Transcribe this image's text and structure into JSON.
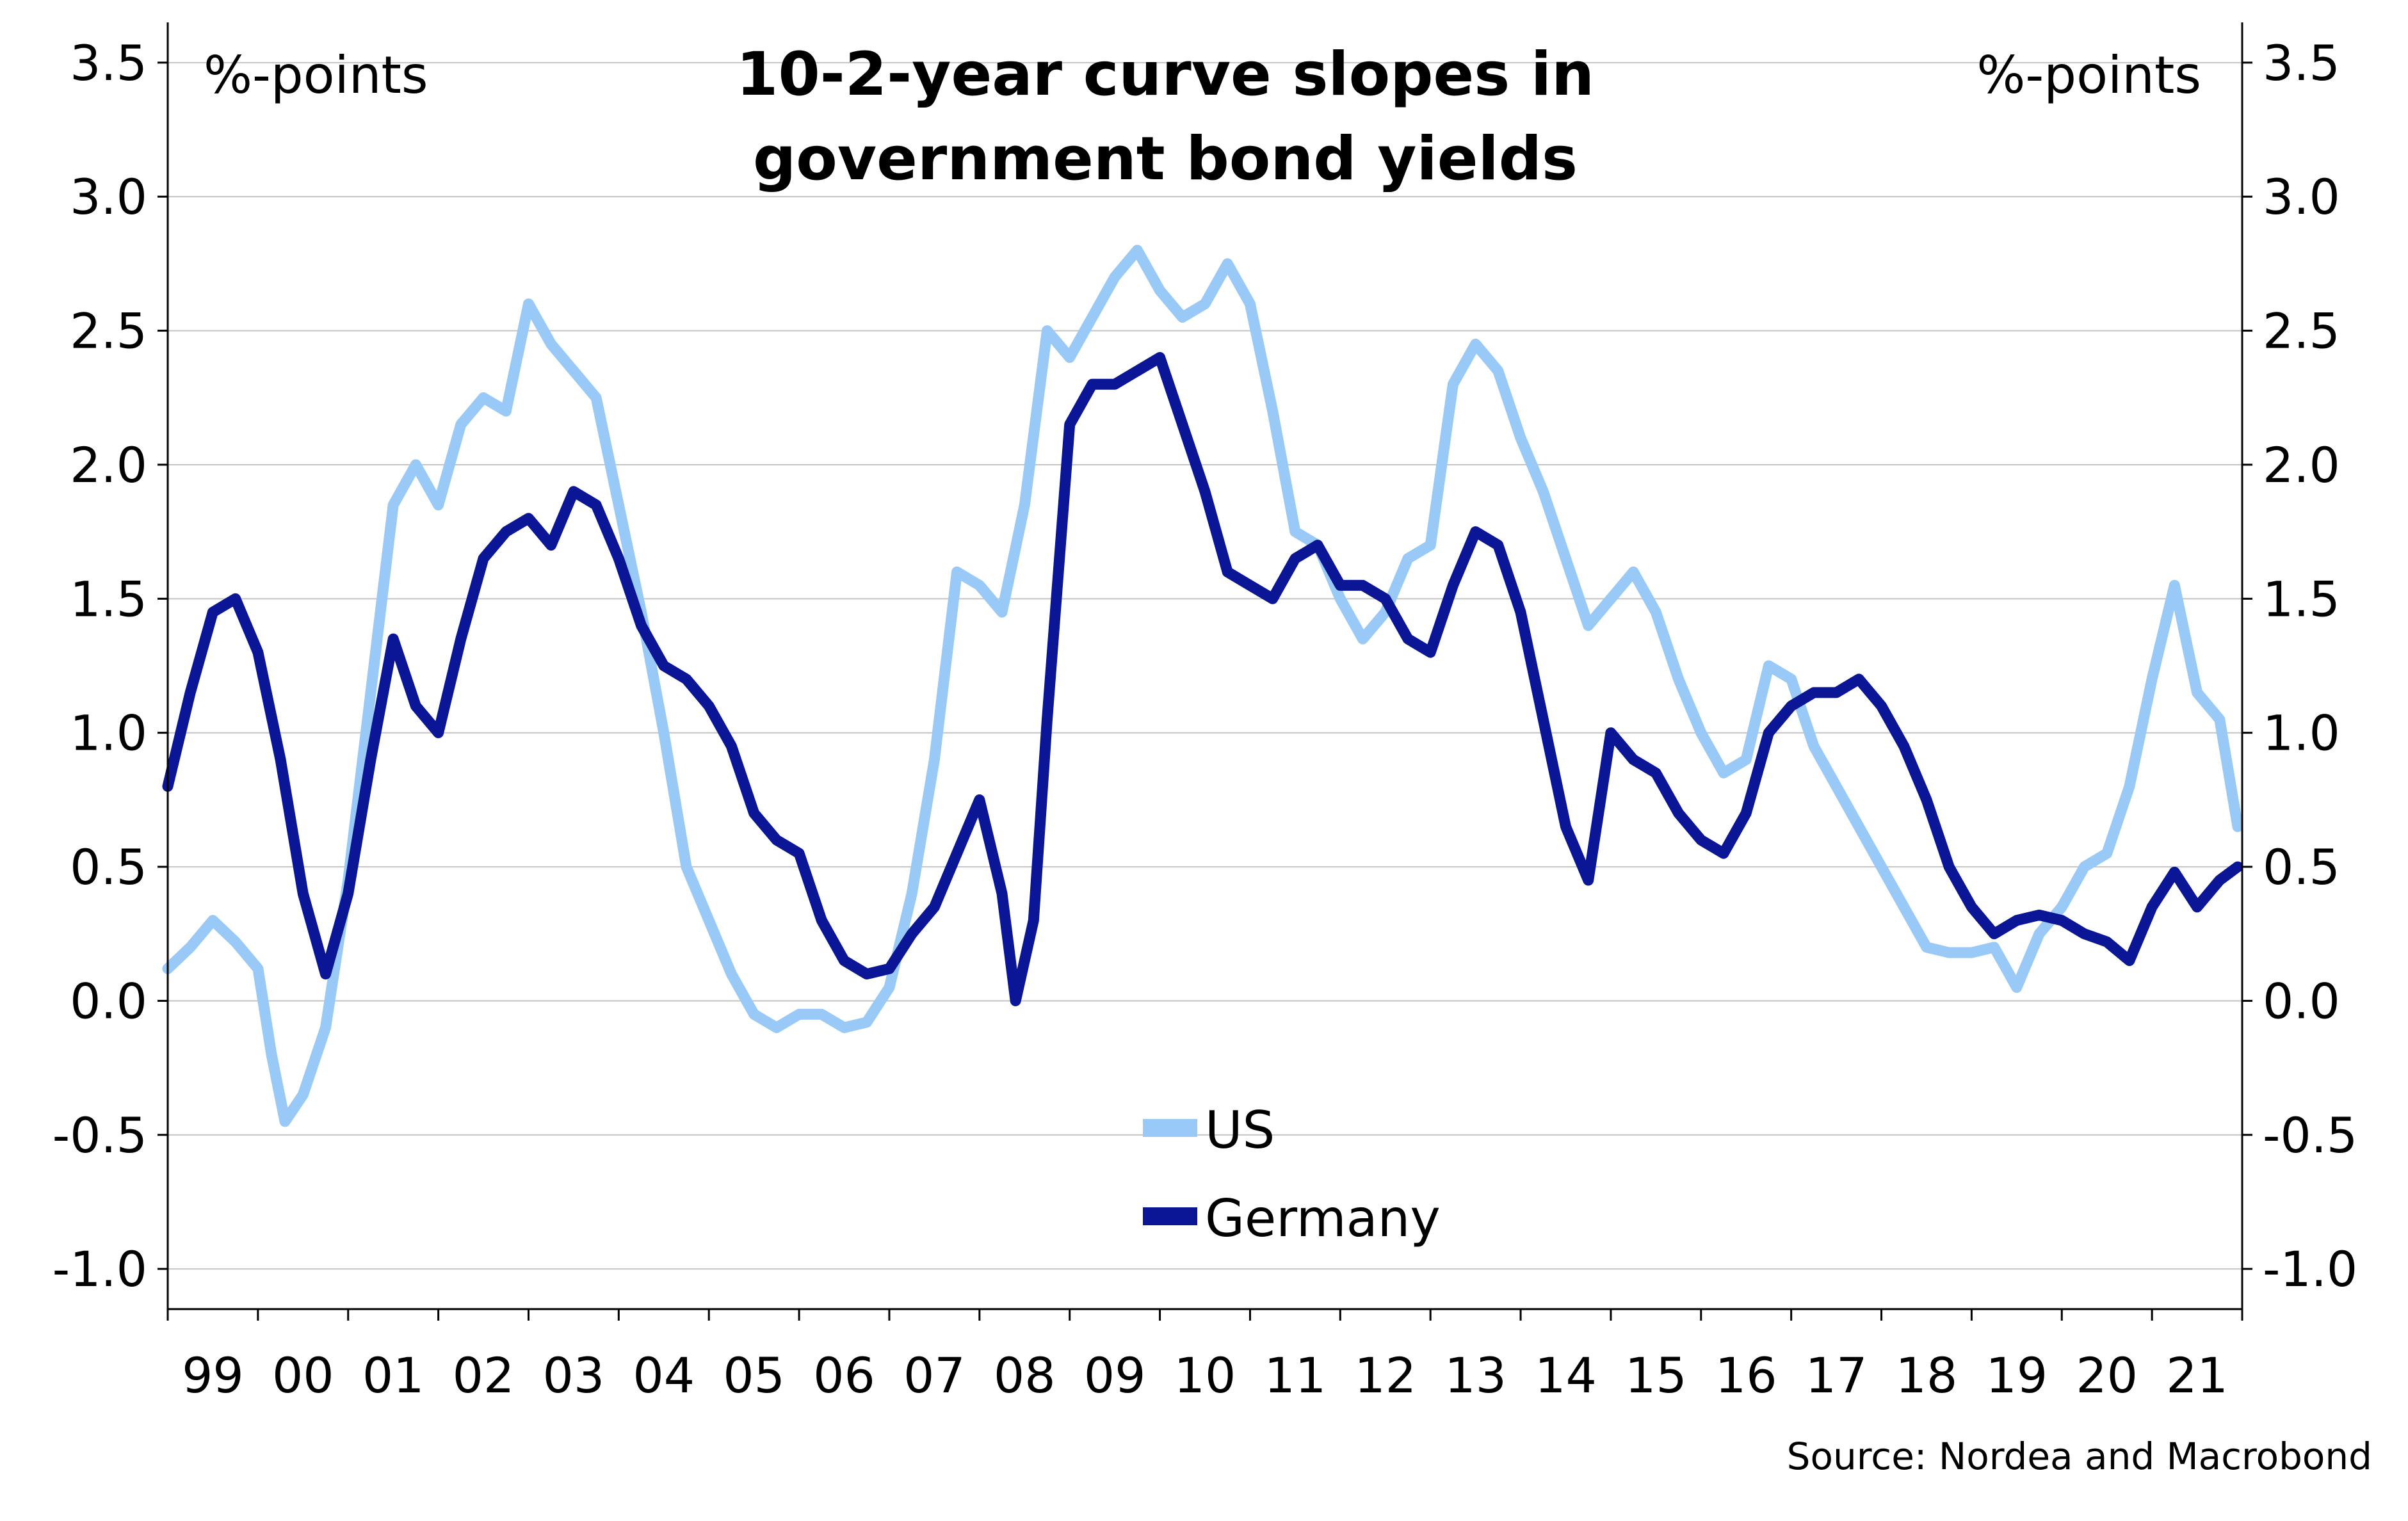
{
  "chart_data": {
    "type": "line",
    "title": [
      "10-2-year curve slopes in",
      "government bond yields"
    ],
    "left_axis_unit": "%-points",
    "right_axis_unit": "%-points",
    "source": "Source: Nordea and Macrobond",
    "xlim": [
      1999.0,
      2022.0
    ],
    "ylim": [
      -1.15,
      3.65
    ],
    "y_ticks": [
      -1.0,
      -0.5,
      0.0,
      0.5,
      1.0,
      1.5,
      2.0,
      2.5,
      3.0,
      3.5
    ],
    "y_tick_labels": [
      "-1.0",
      "-0.5",
      "0.0",
      "0.5",
      "1.0",
      "1.5",
      "2.0",
      "2.5",
      "3.0",
      "3.5"
    ],
    "x_tick_labels": [
      "99",
      "00",
      "01",
      "02",
      "03",
      "04",
      "05",
      "06",
      "07",
      "08",
      "09",
      "10",
      "11",
      "12",
      "13",
      "14",
      "15",
      "16",
      "17",
      "18",
      "19",
      "20",
      "21"
    ],
    "grid": true,
    "legend_placement": "bottom-center",
    "series": [
      {
        "name": "US",
        "color": "#99c9f7",
        "x": [
          1999.0,
          1999.25,
          1999.5,
          1999.75,
          2000.0,
          2000.15,
          2000.3,
          2000.5,
          2000.75,
          2001.0,
          2001.25,
          2001.5,
          2001.75,
          2002.0,
          2002.25,
          2002.5,
          2002.75,
          2003.0,
          2003.25,
          2003.5,
          2003.75,
          2004.0,
          2004.25,
          2004.5,
          2004.75,
          2005.0,
          2005.25,
          2005.5,
          2005.75,
          2006.0,
          2006.25,
          2006.5,
          2006.75,
          2007.0,
          2007.25,
          2007.5,
          2007.75,
          2008.0,
          2008.25,
          2008.5,
          2008.75,
          2009.0,
          2009.25,
          2009.5,
          2009.75,
          2010.0,
          2010.25,
          2010.5,
          2010.75,
          2011.0,
          2011.25,
          2011.5,
          2011.75,
          2012.0,
          2012.25,
          2012.5,
          2012.75,
          2013.0,
          2013.25,
          2013.5,
          2013.75,
          2014.0,
          2014.25,
          2014.5,
          2014.75,
          2015.0,
          2015.25,
          2015.5,
          2015.75,
          2016.0,
          2016.25,
          2016.5,
          2016.75,
          2017.0,
          2017.25,
          2017.5,
          2017.75,
          2018.0,
          2018.25,
          2018.5,
          2018.75,
          2019.0,
          2019.25,
          2019.5,
          2019.75,
          2020.0,
          2020.25,
          2020.5,
          2020.75,
          2021.0,
          2021.25,
          2021.5,
          2021.75,
          2021.95
        ],
        "values": [
          0.12,
          0.2,
          0.3,
          0.22,
          0.12,
          -0.2,
          -0.45,
          -0.35,
          -0.1,
          0.45,
          1.15,
          1.85,
          2.0,
          1.85,
          2.15,
          2.25,
          2.2,
          2.6,
          2.45,
          2.35,
          2.25,
          1.85,
          1.45,
          1.0,
          0.5,
          0.3,
          0.1,
          -0.05,
          -0.1,
          -0.05,
          -0.05,
          -0.1,
          -0.08,
          0.05,
          0.4,
          0.9,
          1.6,
          1.55,
          1.45,
          1.85,
          2.5,
          2.4,
          2.55,
          2.7,
          2.8,
          2.65,
          2.55,
          2.6,
          2.75,
          2.6,
          2.2,
          1.75,
          1.7,
          1.5,
          1.35,
          1.45,
          1.65,
          1.7,
          2.3,
          2.45,
          2.35,
          2.1,
          1.9,
          1.65,
          1.4,
          1.5,
          1.6,
          1.45,
          1.2,
          1.0,
          0.85,
          0.9,
          1.25,
          1.2,
          0.95,
          0.8,
          0.65,
          0.5,
          0.35,
          0.2,
          0.18,
          0.18,
          0.2,
          0.05,
          0.25,
          0.35,
          0.5,
          0.55,
          0.8,
          1.2,
          1.55,
          1.15,
          1.05,
          0.65
        ]
      },
      {
        "name": "Germany",
        "color": "#0a1696",
        "x": [
          1999.0,
          1999.25,
          1999.5,
          1999.75,
          2000.0,
          2000.25,
          2000.5,
          2000.75,
          2001.0,
          2001.25,
          2001.5,
          2001.75,
          2002.0,
          2002.25,
          2002.5,
          2002.75,
          2003.0,
          2003.25,
          2003.5,
          2003.75,
          2004.0,
          2004.25,
          2004.5,
          2004.75,
          2005.0,
          2005.25,
          2005.5,
          2005.75,
          2006.0,
          2006.25,
          2006.5,
          2006.75,
          2007.0,
          2007.25,
          2007.5,
          2007.75,
          2008.0,
          2008.25,
          2008.4,
          2008.6,
          2008.75,
          2009.0,
          2009.25,
          2009.5,
          2009.75,
          2010.0,
          2010.25,
          2010.5,
          2010.75,
          2011.0,
          2011.25,
          2011.5,
          2011.75,
          2012.0,
          2012.25,
          2012.5,
          2012.75,
          2013.0,
          2013.25,
          2013.5,
          2013.75,
          2014.0,
          2014.25,
          2014.5,
          2014.75,
          2015.0,
          2015.25,
          2015.5,
          2015.75,
          2016.0,
          2016.25,
          2016.5,
          2016.75,
          2017.0,
          2017.25,
          2017.5,
          2017.75,
          2018.0,
          2018.25,
          2018.5,
          2018.75,
          2019.0,
          2019.25,
          2019.5,
          2019.75,
          2020.0,
          2020.25,
          2020.5,
          2020.75,
          2021.0,
          2021.25,
          2021.5,
          2021.75,
          2021.95
        ],
        "values": [
          0.8,
          1.15,
          1.45,
          1.5,
          1.3,
          0.9,
          0.4,
          0.1,
          0.4,
          0.9,
          1.35,
          1.1,
          1.0,
          1.35,
          1.65,
          1.75,
          1.8,
          1.7,
          1.9,
          1.85,
          1.65,
          1.4,
          1.25,
          1.2,
          1.1,
          0.95,
          0.7,
          0.6,
          0.55,
          0.3,
          0.15,
          0.1,
          0.12,
          0.25,
          0.35,
          0.55,
          0.75,
          0.4,
          0.0,
          0.3,
          1.05,
          2.15,
          2.3,
          2.3,
          2.35,
          2.4,
          2.15,
          1.9,
          1.6,
          1.55,
          1.5,
          1.65,
          1.7,
          1.55,
          1.55,
          1.5,
          1.35,
          1.3,
          1.55,
          1.75,
          1.7,
          1.45,
          1.05,
          0.65,
          0.45,
          1.0,
          0.9,
          0.85,
          0.7,
          0.6,
          0.55,
          0.7,
          1.0,
          1.1,
          1.15,
          1.15,
          1.2,
          1.1,
          0.95,
          0.75,
          0.5,
          0.35,
          0.25,
          0.3,
          0.32,
          0.3,
          0.25,
          0.22,
          0.15,
          0.35,
          0.48,
          0.35,
          0.45,
          0.5
        ]
      }
    ]
  }
}
